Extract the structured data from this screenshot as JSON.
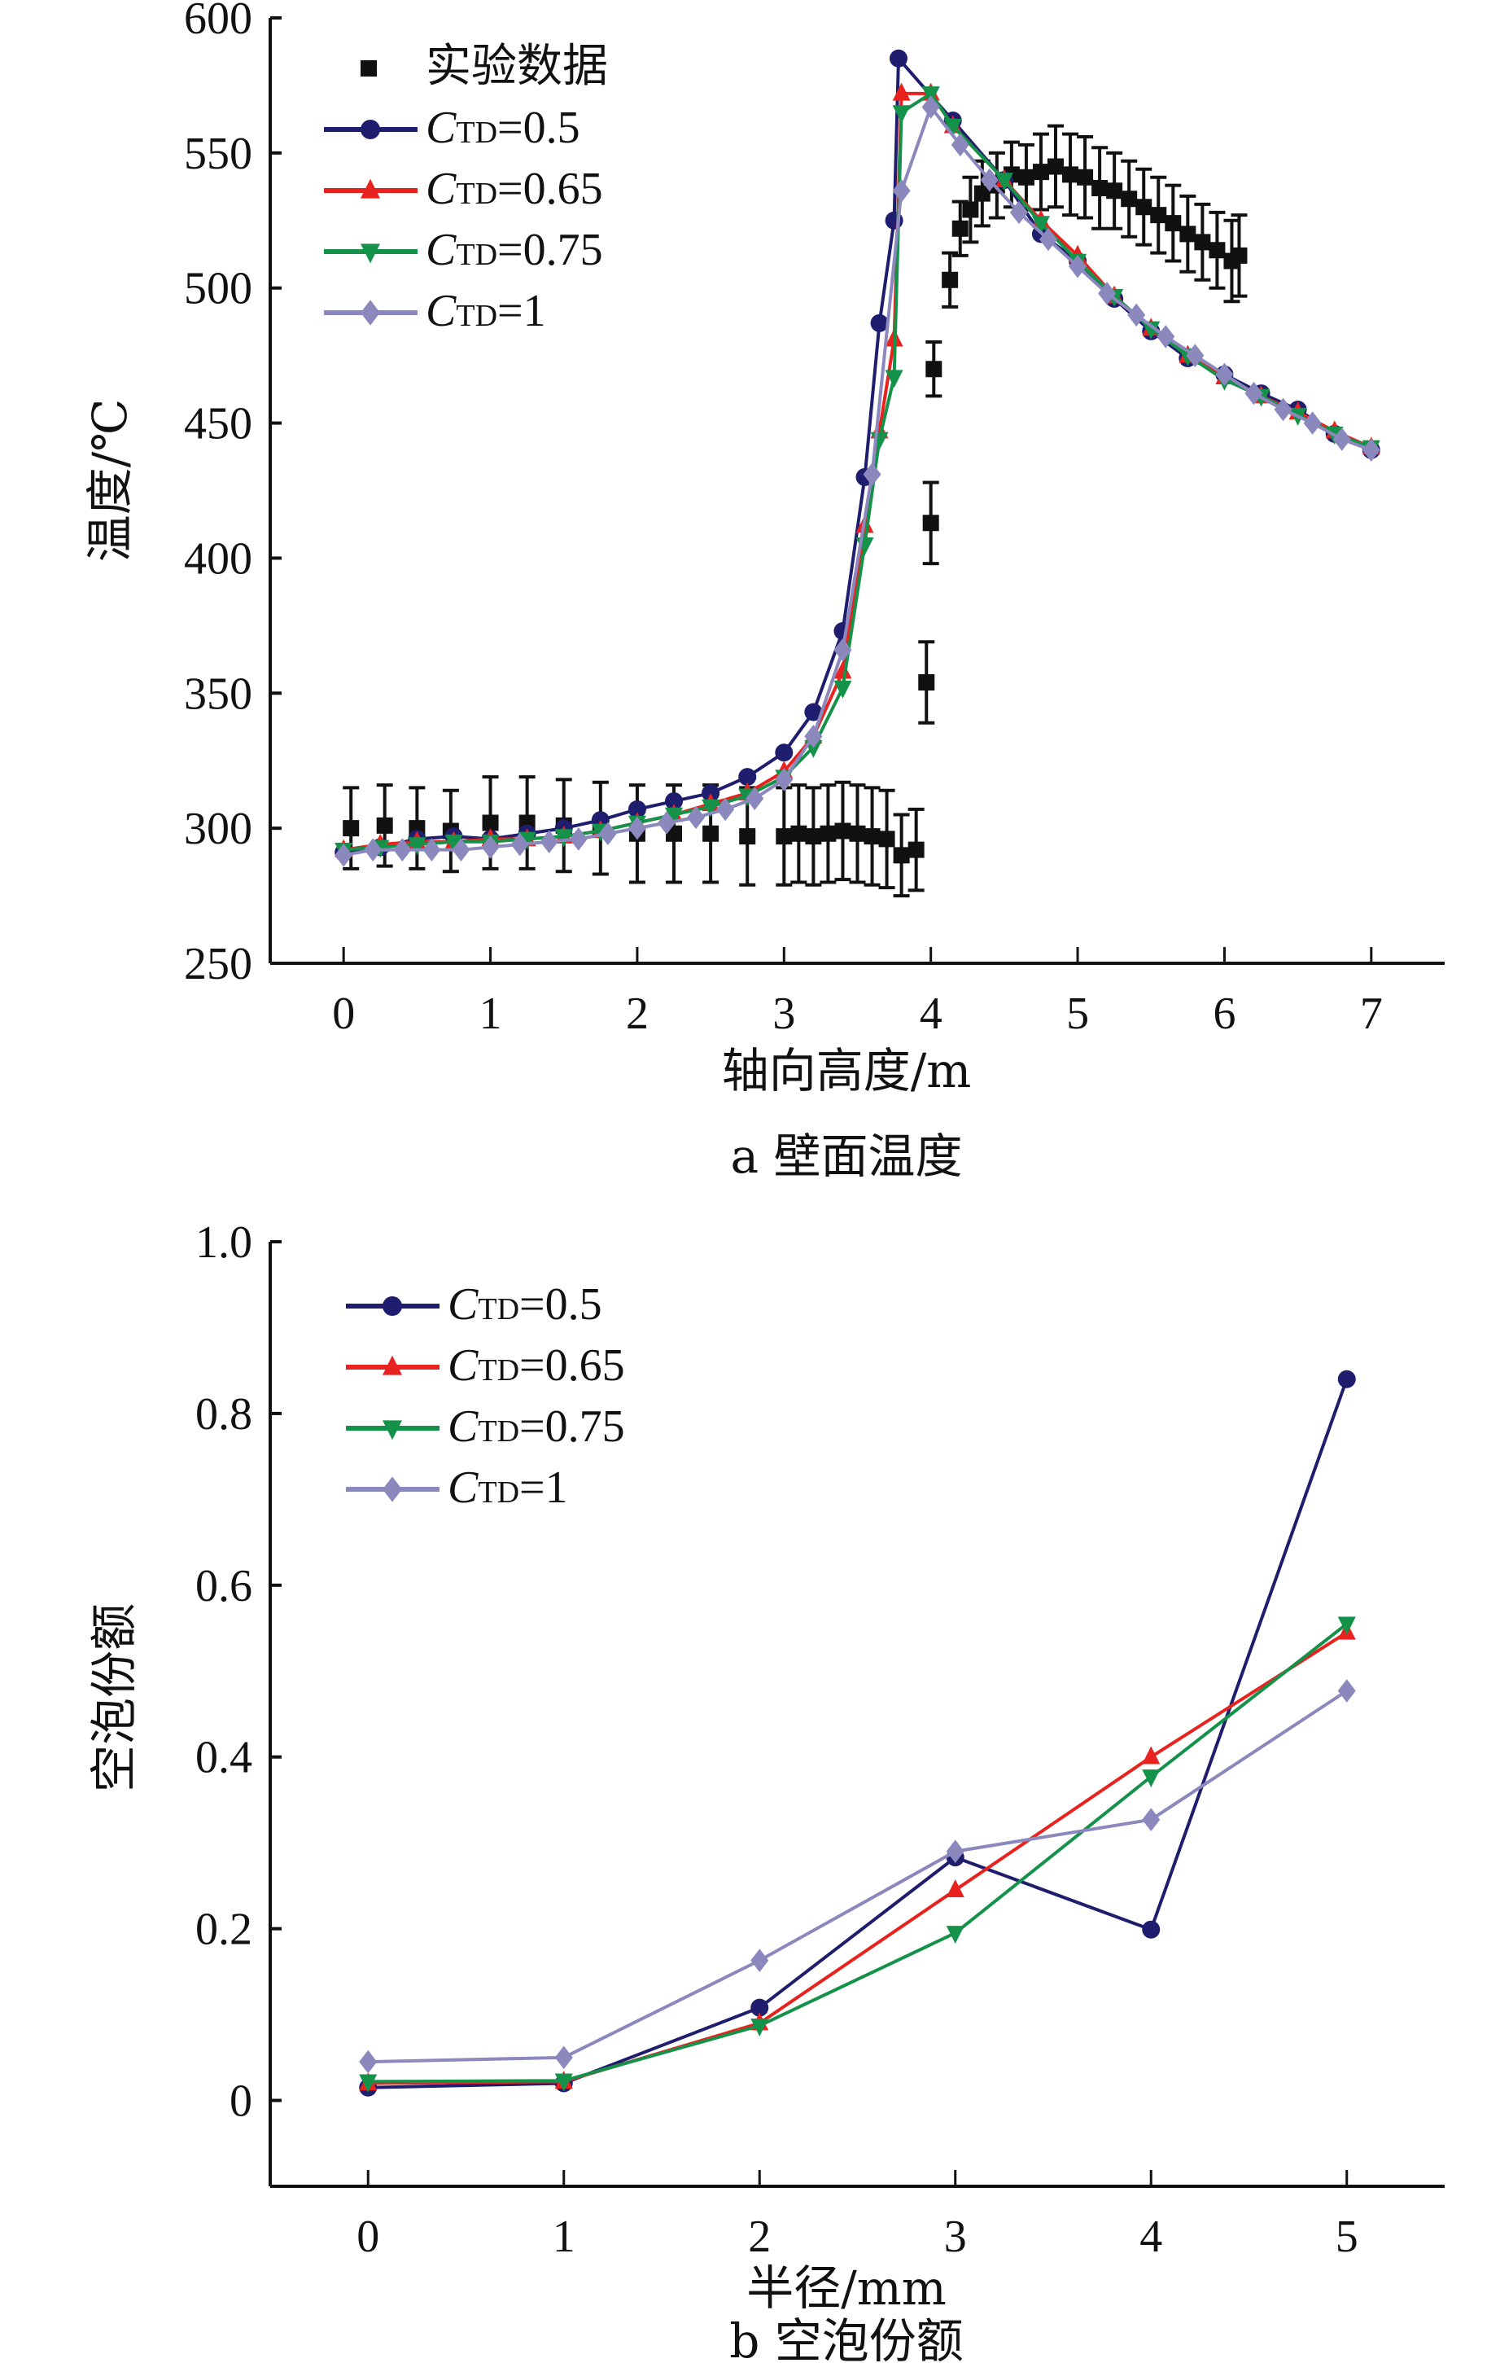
{
  "chart_data": [
    {
      "type": "line",
      "title": "",
      "caption": "a  壁面温度",
      "xlabel": "轴向高度/m",
      "ylabel": "温度/℃",
      "xlim": [
        -0.5,
        7.5
      ],
      "ylim": [
        250,
        600
      ],
      "xticks": [
        "0",
        "1",
        "2",
        "3",
        "4",
        "5",
        "6",
        "7"
      ],
      "yticks": [
        "250",
        "300",
        "350",
        "400",
        "450",
        "500",
        "550",
        "600"
      ],
      "legend_position": "top-left",
      "grid": false,
      "experimental": {
        "name": "实验数据",
        "x": [
          0.05,
          0.28,
          0.5,
          0.73,
          1.0,
          1.25,
          1.5,
          1.75,
          2.0,
          2.25,
          2.5,
          2.75,
          3.0,
          3.1,
          3.2,
          3.3,
          3.4,
          3.5,
          3.6,
          3.7,
          3.8,
          3.9,
          3.97,
          4.0,
          4.02,
          4.13,
          4.2,
          4.27,
          4.35,
          4.45,
          4.55,
          4.65,
          4.75,
          4.85,
          4.95,
          5.05,
          5.15,
          5.25,
          5.35,
          5.45,
          5.55,
          5.65,
          5.75,
          5.85,
          5.95,
          6.05,
          6.1
        ],
        "y": [
          300,
          301,
          300,
          299,
          302,
          302,
          301,
          300,
          298,
          298,
          298,
          297,
          297,
          298,
          297,
          298,
          299,
          298,
          297,
          296,
          290,
          292,
          354,
          413,
          470,
          503,
          522,
          529,
          535,
          538,
          542,
          541,
          543,
          545,
          542,
          541,
          537,
          536,
          533,
          530,
          527,
          524,
          520,
          517,
          514,
          510,
          512
        ],
        "error": [
          15,
          15,
          15,
          15,
          17,
          17,
          17,
          17,
          18,
          18,
          18,
          18,
          18,
          18,
          18,
          18,
          18,
          18,
          18,
          18,
          15,
          15,
          15,
          15,
          10,
          10,
          10,
          12,
          12,
          12,
          12,
          12,
          14,
          15,
          15,
          15,
          15,
          14,
          14,
          14,
          14,
          14,
          14,
          14,
          14,
          15,
          15
        ]
      },
      "series": [
        {
          "name": "CTD=0.5",
          "sub": "TD",
          "val": "=0.5",
          "color": "#1f1d6e",
          "marker": "circle",
          "x": [
            0,
            0.25,
            0.5,
            0.75,
            1,
            1.25,
            1.5,
            1.75,
            2,
            2.25,
            2.5,
            2.75,
            3,
            3.2,
            3.4,
            3.55,
            3.65,
            3.75,
            3.78,
            4.15,
            4.5,
            4.75,
            5,
            5.25,
            5.5,
            5.75,
            6,
            6.25,
            6.5,
            6.75,
            7
          ],
          "y": [
            291,
            293,
            296,
            297,
            296,
            298,
            300,
            303,
            307,
            310,
            313,
            319,
            328,
            343,
            373,
            430,
            487,
            525,
            585,
            562,
            540,
            520,
            510,
            496,
            484,
            474,
            468,
            461,
            455,
            446,
            440
          ]
        },
        {
          "name": "CTD=0.65",
          "sub": "TD",
          "val": "=0.65",
          "color": "#e8231f",
          "marker": "triangle-up",
          "x": [
            0,
            0.25,
            0.5,
            0.75,
            1,
            1.25,
            1.5,
            1.75,
            2,
            2.25,
            2.5,
            2.75,
            3,
            3.2,
            3.4,
            3.55,
            3.65,
            3.75,
            3.8,
            4.0,
            4.15,
            4.5,
            4.75,
            5,
            5.25,
            5.5,
            5.75,
            6,
            6.25,
            6.5,
            6.75,
            7
          ],
          "y": [
            292,
            294,
            295,
            295,
            296,
            296,
            297,
            299,
            302,
            305,
            309,
            313,
            321,
            334,
            358,
            412,
            447,
            481,
            572,
            572,
            560,
            540,
            525,
            512,
            497,
            485,
            475,
            467,
            460,
            454,
            447,
            441
          ]
        },
        {
          "name": "CTD=0.75",
          "sub": "TD",
          "val": "=0.75",
          "color": "#15924a",
          "marker": "triangle-down",
          "x": [
            0,
            0.25,
            0.5,
            0.75,
            1,
            1.25,
            1.5,
            1.75,
            2,
            2.25,
            2.5,
            2.75,
            3,
            3.2,
            3.4,
            3.55,
            3.65,
            3.75,
            3.8,
            4.0,
            4.15,
            4.5,
            4.75,
            5,
            5.25,
            5.5,
            5.75,
            6,
            6.25,
            6.5,
            6.75,
            7
          ],
          "y": [
            292,
            293,
            294,
            295,
            295,
            296,
            297,
            299,
            302,
            305,
            308,
            312,
            319,
            330,
            352,
            405,
            444,
            467,
            565,
            572,
            560,
            540,
            524,
            510,
            497,
            485,
            475,
            466,
            460,
            453,
            446,
            441
          ]
        },
        {
          "name": "CTD=1",
          "sub": "TD",
          "val": "=1",
          "color": "#8b88bd",
          "marker": "diamond",
          "x": [
            0,
            0.2,
            0.4,
            0.6,
            0.8,
            1,
            1.2,
            1.4,
            1.6,
            1.8,
            2,
            2.2,
            2.4,
            2.6,
            2.8,
            3,
            3.2,
            3.4,
            3.6,
            3.8,
            4.0,
            4.2,
            4.4,
            4.6,
            4.8,
            5,
            5.2,
            5.4,
            5.6,
            5.8,
            6,
            6.2,
            6.4,
            6.6,
            6.8,
            7
          ],
          "y": [
            290,
            292,
            292,
            292,
            292,
            293,
            294,
            295,
            296,
            298,
            300,
            302,
            304,
            307,
            311,
            318,
            334,
            366,
            431,
            536,
            567,
            553,
            540,
            528,
            518,
            508,
            498,
            490,
            482,
            475,
            468,
            461,
            455,
            450,
            444,
            440
          ]
        }
      ]
    },
    {
      "type": "line",
      "title": "",
      "caption": "b  空泡份额",
      "xlabel": "半径/mm",
      "ylabel": "空泡份额",
      "xlim": [
        -0.5,
        5.5
      ],
      "ylim": [
        -0.1,
        1.0
      ],
      "xticks": [
        "0",
        "1",
        "2",
        "3",
        "4",
        "5"
      ],
      "yticks": [
        "0",
        "0.2",
        "0.4",
        "0.6",
        "0.8",
        "1.0"
      ],
      "legend_position": "top-left",
      "grid": false,
      "series": [
        {
          "name": "CTD=0.5",
          "sub": "TD",
          "val": "=0.5",
          "color": "#1f1d6e",
          "marker": "circle",
          "x": [
            0,
            1,
            2,
            3,
            4,
            5
          ],
          "y": [
            0.015,
            0.02,
            0.108,
            0.283,
            0.199,
            0.84
          ]
        },
        {
          "name": "CTD=0.65",
          "sub": "TD",
          "val": "=0.65",
          "color": "#e8231f",
          "marker": "triangle-up",
          "x": [
            0,
            1,
            2,
            3,
            4,
            5
          ],
          "y": [
            0.02,
            0.022,
            0.09,
            0.245,
            0.4,
            0.545
          ]
        },
        {
          "name": "CTD=0.75",
          "sub": "TD",
          "val": "=0.75",
          "color": "#15924a",
          "marker": "triangle-down",
          "x": [
            0,
            1,
            2,
            3,
            4,
            5
          ],
          "y": [
            0.022,
            0.023,
            0.087,
            0.195,
            0.377,
            0.555
          ]
        },
        {
          "name": "CTD=1",
          "sub": "TD",
          "val": "=1",
          "color": "#8b88bd",
          "marker": "diamond",
          "x": [
            0,
            1,
            2,
            3,
            4,
            5
          ],
          "y": [
            0.045,
            0.05,
            0.163,
            0.29,
            0.327,
            0.477
          ]
        }
      ]
    }
  ]
}
